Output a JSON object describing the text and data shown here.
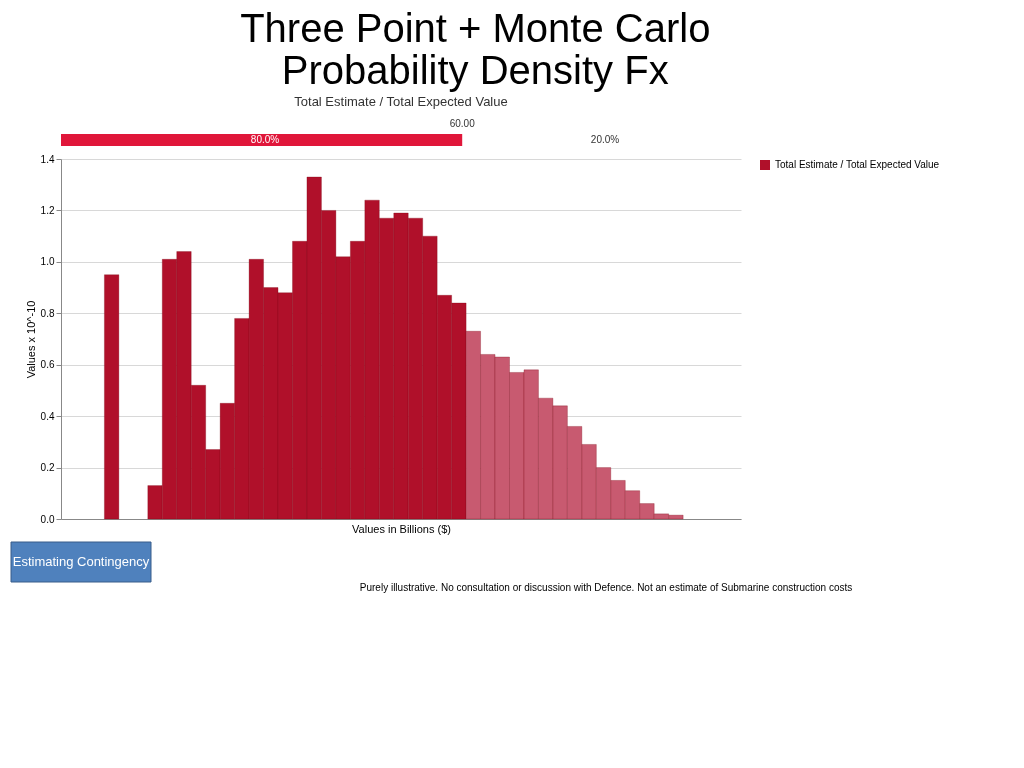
{
  "chart_data": {
    "type": "bar",
    "title": [
      "Three Point + Monte Carlo",
      "Probability Density Fx"
    ],
    "subtitle": "Total Estimate / Total Expected Value",
    "xlabel": "Values in Billions ($)",
    "ylabel": "Values x 10^-10",
    "categories": [
      null,
      null,
      null,
      null,
      null,
      null,
      null,
      null,
      null,
      null,
      null,
      null,
      null,
      null,
      null,
      null,
      null,
      null,
      null,
      null,
      null,
      null,
      null,
      null,
      null,
      null,
      null,
      null,
      null,
      null,
      null,
      null,
      null,
      null,
      null,
      null,
      null,
      null,
      null,
      null,
      null,
      null,
      null,
      null,
      null,
      null,
      null
    ],
    "series": [
      {
        "name": "Total Estimate / Total Expected Value",
        "color": "#b0102a",
        "values": [
          null,
          null,
          null,
          0.95,
          null,
          null,
          0.13,
          1.01,
          1.04,
          0.52,
          0.27,
          0.45,
          0.78,
          1.01,
          0.9,
          0.88,
          1.08,
          1.33,
          1.2,
          1.02,
          1.08,
          1.24,
          1.17,
          1.19,
          1.17,
          1.1,
          0.87,
          0.84,
          null,
          null,
          null,
          null,
          null,
          null,
          null,
          null,
          null,
          null,
          null,
          null,
          null,
          null,
          null,
          null,
          null,
          null,
          null
        ]
      },
      {
        "color": "#c85a70",
        "values": [
          null,
          null,
          null,
          null,
          null,
          null,
          null,
          null,
          null,
          null,
          null,
          null,
          null,
          null,
          null,
          null,
          null,
          null,
          null,
          null,
          null,
          null,
          null,
          null,
          null,
          null,
          null,
          null,
          0.73,
          0.64,
          0.63,
          0.57,
          0.58,
          0.47,
          0.44,
          0.36,
          0.29,
          0.2,
          0.15,
          0.11,
          0.06,
          0.02,
          0.015,
          null,
          null,
          null,
          null
        ]
      }
    ],
    "ylim": [
      0,
      1.4
    ],
    "yticks": [
      {
        "value": 0,
        "label": "0.0"
      },
      0.2,
      0.4,
      0.6,
      0.8,
      {
        "value": 1,
        "label": "1.0"
      },
      1.2,
      1.4
    ],
    "tick_labels": "y",
    "grid": "y",
    "legend": "right",
    "annotations": [
      "80.0%",
      "60.00",
      "20.0%",
      "Estimating Contingency",
      "Purely illustrative.  No consultation or discussion with Defence.  Not an estimate of Submarine construction costs"
    ]
  }
}
